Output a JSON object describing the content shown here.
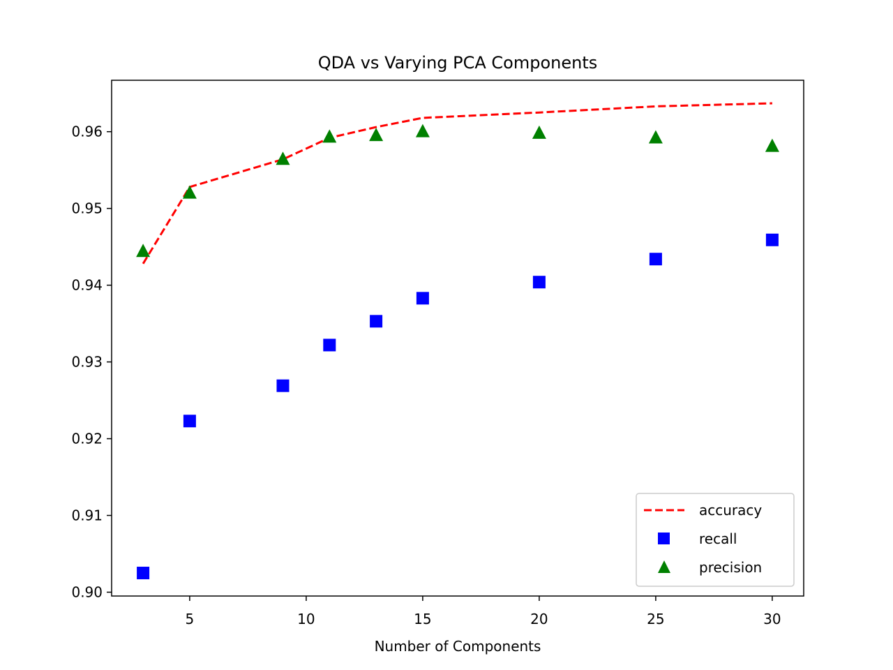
{
  "chart_data": {
    "type": "line",
    "title": "QDA vs Varying PCA Components",
    "xlabel": "Number of Components",
    "ylabel": "",
    "xlim": [
      1.65,
      31.35
    ],
    "ylim": [
      0.8995,
      0.9667
    ],
    "x_ticks": [
      5,
      10,
      15,
      20,
      25,
      30
    ],
    "y_ticks": [
      0.9,
      0.91,
      0.92,
      0.93,
      0.94,
      0.95,
      0.96
    ],
    "x_tick_labels": [
      "5",
      "10",
      "15",
      "20",
      "25",
      "30"
    ],
    "y_tick_labels": [
      "0.90",
      "0.91",
      "0.92",
      "0.93",
      "0.94",
      "0.95",
      "0.96"
    ],
    "grid": false,
    "legend_position": "lower right",
    "x": [
      3,
      5,
      9,
      11,
      13,
      15,
      20,
      25,
      30
    ],
    "series": [
      {
        "name": "accuracy",
        "style": "dashed-line",
        "color": "#ff0000",
        "values": [
          0.9428,
          0.9528,
          0.9564,
          0.9592,
          0.9606,
          0.9618,
          0.9625,
          0.9633,
          0.9637
        ]
      },
      {
        "name": "recall",
        "style": "square-marker",
        "color": "#0000ff",
        "values": [
          0.9025,
          0.9223,
          0.9269,
          0.9322,
          0.9353,
          0.9383,
          0.9404,
          0.9434,
          0.9459
        ]
      },
      {
        "name": "precision",
        "style": "triangle-marker",
        "color": "#008000",
        "values": [
          0.9444,
          0.952,
          0.9564,
          0.9593,
          0.9595,
          0.96,
          0.9598,
          0.9592,
          0.9581
        ]
      }
    ]
  }
}
